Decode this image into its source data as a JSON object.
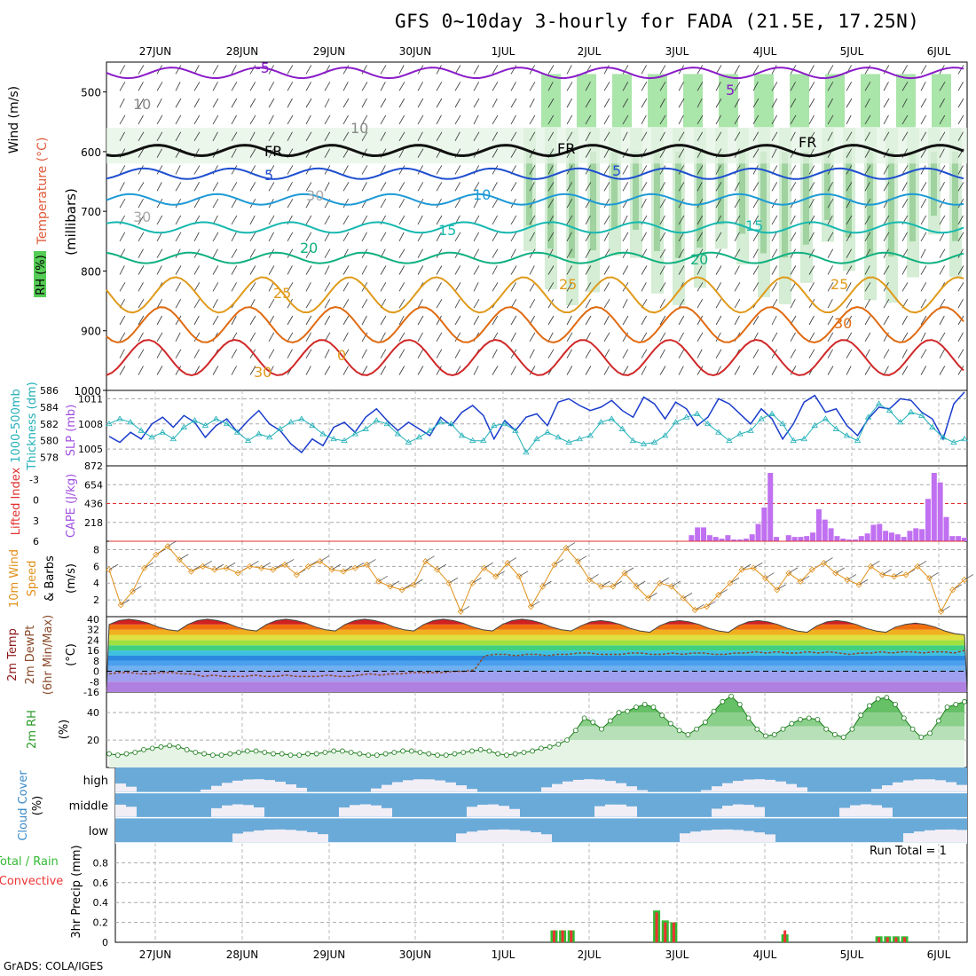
{
  "header": {
    "title": "GFS 0~10day 3-hourly for FADA (21.5E, 17.25N)",
    "credit": "GrADS: COLA/IGES",
    "run_total": "Run Total = 1"
  },
  "colors": {
    "rh_green": "#55cc55",
    "temp_purple": "#8a1cc8",
    "temp_blue": "#1f4fd0",
    "temp_cyan": "#1e9ad6",
    "temp_teal": "#16b8b0",
    "temp_green": "#10b080",
    "temp_orange": "#e09a1a",
    "temp_darkorange": "#e06a10",
    "temp_red": "#d02828",
    "thickness_blue": "#1a3ccc",
    "slp_cyan": "#22b0b8",
    "cape_purple": "#c070f0",
    "lifted_red": "#e03030",
    "wind_orange": "#e0901a",
    "cloud_blue": "#6aaad8",
    "precip_green": "#33bb33",
    "precip_red": "#ee3333"
  },
  "time_axis": {
    "date_labels": [
      "27JUN",
      "28JUN",
      "29JUN",
      "30JUN",
      "1JUL",
      "2JUL",
      "3JUL",
      "4JUL",
      "5JUL",
      "6JUL"
    ]
  },
  "panels": {
    "upper_air": {
      "ylabel_wind": "Wind (m/s)",
      "ylabel_temp": "Temperature (°C)",
      "ylabel_rh": "RH (%)",
      "ylabel_pressure": "(millibars)",
      "y_ticks": [
        "500",
        "600",
        "700",
        "800",
        "900",
        "1000"
      ],
      "contour_labels": [
        "-5",
        "5",
        "FR",
        "FR",
        "FR",
        "5",
        "5",
        "10",
        "15",
        "15",
        "20",
        "20",
        "25",
        "25",
        "25",
        "30",
        "30",
        "0",
        "10",
        "10",
        "30",
        "30"
      ]
    },
    "thickness_slp": {
      "ylabel_thickness": "Thickness (dm)",
      "ylabel_thickness_sub": "1000-500mb",
      "ylabel_slp": "SLP (mb)",
      "ticks_thickness": [
        "586",
        "584",
        "582",
        "580",
        "578"
      ],
      "ticks_slp": [
        "1011",
        "1008",
        "1005"
      ]
    },
    "cape_li": {
      "ylabel_li": "Lifted Index",
      "ylabel_cape": "CAPE (J/kg)",
      "ticks_li": [
        "-3",
        "0",
        "3",
        "6"
      ],
      "ticks_cape": [
        "872",
        "654",
        "436",
        "218"
      ]
    },
    "wind10m": {
      "ylabel_1": "10m Wind",
      "ylabel_2": "Speed",
      "ylabel_3": "& Barbs",
      "unit": "(m/s)",
      "ticks": [
        "8",
        "6",
        "4",
        "2"
      ]
    },
    "temp2m": {
      "ylabel_1": "2m Temp",
      "ylabel_2": "2m DewPt",
      "ylabel_3": "(6hr Min/Max)",
      "unit": "(°C)",
      "ticks": [
        "40",
        "32",
        "24",
        "16",
        "8",
        "0",
        "-8",
        "-16"
      ]
    },
    "rh2m": {
      "ylabel": "2m RH",
      "unit": "(%)",
      "ticks": [
        "40",
        "20"
      ]
    },
    "cloud": {
      "ylabel": "Cloud Cover",
      "unit": "(%)",
      "levels": [
        "high",
        "middle",
        "low"
      ]
    },
    "precip": {
      "ylabel_1": "Total / Rain",
      "ylabel_2": "Convective",
      "ylabel_3": "3hr Precip (mm)",
      "ticks": [
        "0.8",
        "0.6",
        "0.4",
        "0.2",
        "0"
      ]
    }
  },
  "chart_data": [
    {
      "type": "line",
      "name": "thickness_1000_500mb",
      "ylabel": "Thickness (dm)",
      "ylim": [
        577,
        586
      ],
      "values": [
        580.5,
        579.8,
        581.0,
        580.2,
        582.0,
        582.8,
        581.6,
        583.0,
        582.2,
        580.4,
        581.8,
        582.6,
        581.0,
        582.4,
        583.6,
        582.0,
        581.2,
        579.6,
        578.6,
        580.2,
        579.4,
        581.6,
        582.2,
        581.0,
        582.8,
        583.8,
        582.4,
        581.2,
        582.2,
        581.4,
        580.6,
        582.8,
        581.8,
        583.4,
        584.2,
        583.0,
        580.2,
        582.4,
        581.2,
        582.8,
        583.2,
        581.8,
        584.6,
        585.0,
        584.2,
        583.6,
        584.0,
        584.8,
        583.6,
        582.8,
        585.2,
        584.4,
        582.6,
        584.6,
        583.8,
        581.8,
        582.8,
        585.0,
        584.4,
        583.2,
        582.0,
        583.8,
        582.6,
        580.2,
        582.0,
        584.6,
        585.4,
        583.4,
        583.8,
        581.8,
        580.6,
        582.6,
        584.0,
        583.8,
        585.0,
        584.8,
        583.4,
        582.6,
        580.2,
        584.4,
        585.8
      ]
    },
    {
      "type": "line",
      "name": "slp",
      "ylabel": "SLP (mb)",
      "ylim": [
        1003,
        1012
      ],
      "values": [
        1008.0,
        1008.6,
        1008.2,
        1007.2,
        1006.4,
        1007.0,
        1006.2,
        1007.6,
        1008.4,
        1007.8,
        1008.6,
        1008.0,
        1007.0,
        1006.0,
        1006.8,
        1006.4,
        1007.4,
        1008.2,
        1008.6,
        1007.8,
        1006.8,
        1006.2,
        1006.0,
        1006.8,
        1007.4,
        1008.4,
        1008.0,
        1006.8,
        1005.8,
        1006.4,
        1007.2,
        1008.2,
        1008.0,
        1006.6,
        1006.0,
        1006.0,
        1007.8,
        1008.0,
        1007.2,
        1004.6,
        1006.2,
        1007.0,
        1006.4,
        1005.8,
        1006.2,
        1006.6,
        1008.2,
        1008.6,
        1007.4,
        1006.0,
        1005.6,
        1005.8,
        1006.6,
        1008.2,
        1008.8,
        1009.2,
        1008.0,
        1007.0,
        1006.0,
        1006.8,
        1007.2,
        1008.6,
        1009.2,
        1008.0,
        1006.0,
        1006.2,
        1007.8,
        1008.6,
        1007.4,
        1006.6,
        1006.0,
        1008.8,
        1010.4,
        1009.6,
        1008.2,
        1009.4,
        1009.0,
        1007.6,
        1006.4,
        1005.8,
        1006.2
      ]
    },
    {
      "type": "bar",
      "name": "cape",
      "ylabel": "CAPE (J/kg)",
      "ylim": [
        0,
        872
      ],
      "values": [
        0,
        0,
        0,
        0,
        0,
        0,
        0,
        0,
        0,
        0,
        0,
        0,
        0,
        0,
        0,
        0,
        0,
        0,
        0,
        0,
        0,
        0,
        0,
        0,
        0,
        0,
        0,
        0,
        0,
        0,
        0,
        0,
        0,
        0,
        0,
        0,
        0,
        0,
        0,
        0,
        0,
        0,
        0,
        0,
        0,
        0,
        0,
        0,
        0,
        0,
        0,
        0,
        0,
        0,
        0,
        0,
        0,
        0,
        0,
        0,
        0,
        0,
        0,
        0,
        0,
        0,
        0,
        0,
        0,
        0,
        0,
        0,
        0,
        0,
        0,
        0,
        0,
        0,
        0,
        0,
        0,
        0,
        0,
        0,
        0,
        0,
        0,
        0,
        0,
        0,
        0,
        0,
        0,
        0,
        0,
        0,
        70,
        160,
        160,
        70,
        50,
        30,
        70,
        20,
        20,
        30,
        80,
        200,
        390,
        790,
        50,
        0,
        70,
        50,
        50,
        60,
        100,
        370,
        250,
        150,
        60,
        30,
        20,
        20,
        60,
        90,
        190,
        200,
        120,
        100,
        80,
        50,
        120,
        150,
        140,
        490,
        790,
        680,
        280,
        60,
        60,
        40
      ]
    },
    {
      "type": "line",
      "name": "lifted_index",
      "ylabel": "Lifted Index",
      "ylim": [
        6,
        -5
      ],
      "values": [
        6,
        6,
        6,
        6,
        6,
        6,
        6,
        6,
        6,
        6,
        6,
        6,
        6,
        6,
        6,
        6,
        6,
        6,
        6,
        6,
        6,
        6,
        6,
        6,
        6,
        6,
        6,
        6,
        6,
        6,
        6,
        6,
        6,
        6,
        6,
        6,
        6,
        6,
        6,
        6,
        6,
        6,
        6,
        6,
        6,
        6,
        6,
        6,
        6,
        6,
        6,
        6,
        6,
        6,
        6,
        6,
        6,
        6,
        6,
        6,
        6,
        6,
        6,
        6,
        6,
        6,
        6,
        6,
        6,
        6,
        6,
        6,
        6,
        6,
        6,
        6,
        6,
        6,
        6,
        6,
        6,
        6,
        6,
        6,
        6,
        6,
        6,
        6,
        6,
        6,
        6,
        6,
        6,
        6,
        6,
        6,
        6,
        6,
        6,
        6,
        6,
        6,
        6,
        6,
        6,
        6,
        6,
        6,
        6,
        6,
        6,
        6,
        6,
        6,
        6,
        6,
        6,
        6,
        6,
        6,
        6,
        6,
        6,
        6,
        6,
        6,
        6,
        6,
        6,
        6,
        6,
        6,
        6,
        6,
        6,
        6,
        6,
        6,
        6,
        6,
        6,
        6,
        6,
        6,
        6,
        6
      ]
    },
    {
      "type": "line",
      "name": "wind_speed_10m",
      "ylabel": "Speed (m/s)",
      "ylim": [
        0,
        9
      ],
      "values": [
        5.6,
        1.4,
        3.0,
        5.8,
        7.4,
        8.4,
        6.8,
        5.4,
        6.0,
        5.6,
        5.8,
        5.2,
        6.0,
        5.8,
        5.6,
        6.2,
        5.0,
        6.0,
        6.6,
        5.6,
        5.4,
        5.8,
        6.2,
        4.2,
        3.6,
        3.2,
        3.8,
        6.6,
        5.6,
        4.0,
        0.6,
        4.0,
        5.8,
        4.8,
        6.4,
        4.8,
        1.2,
        3.6,
        6.2,
        8.2,
        6.6,
        4.4,
        3.6,
        3.6,
        5.2,
        3.6,
        2.2,
        4.0,
        3.6,
        2.2,
        0.8,
        1.2,
        2.6,
        4.0,
        5.6,
        5.8,
        4.6,
        3.2,
        5.2,
        4.2,
        5.6,
        6.4,
        5.2,
        4.4,
        3.8,
        6.0,
        5.0,
        4.8,
        5.0,
        6.0,
        4.6,
        0.6,
        3.2,
        4.4
      ]
    },
    {
      "type": "area",
      "name": "temp_2m",
      "ylabel": "2m Temp (°C)",
      "ylim": [
        -16,
        42
      ],
      "values": [
        36,
        39,
        40,
        39,
        37,
        34,
        32,
        31,
        36,
        39,
        40,
        39,
        37,
        34,
        32,
        31,
        36,
        39,
        40,
        39,
        37,
        34,
        32,
        31,
        36,
        39,
        40,
        39,
        37,
        34,
        32,
        31,
        36,
        39,
        40,
        39,
        37,
        34,
        32,
        31,
        36,
        39,
        40,
        39,
        37,
        34,
        32,
        31,
        35,
        38,
        39,
        38,
        36,
        33,
        31,
        30,
        35,
        38,
        39,
        38,
        36,
        33,
        31,
        30,
        35,
        38,
        39,
        38,
        36,
        33,
        31,
        30,
        35,
        38,
        39,
        38,
        36,
        33,
        31,
        30,
        34,
        36,
        37,
        36,
        34,
        31,
        29,
        28
      ]
    },
    {
      "type": "line",
      "name": "dewpoint_2m",
      "ylabel": "2m DewPt (°C)",
      "ylim": [
        -16,
        42
      ],
      "values": [
        -2,
        -1,
        -1,
        -2,
        -2,
        -1,
        -1,
        -2,
        -2,
        -4,
        -3,
        -4,
        -4,
        -4,
        -3,
        -4,
        -4,
        -3,
        -4,
        -4,
        -4,
        -3,
        -4,
        -4,
        -3,
        -2,
        -3,
        -2,
        -2,
        -1,
        -1,
        -1,
        -1,
        0,
        0,
        1,
        12,
        13,
        13,
        12,
        13,
        13,
        12,
        13,
        13,
        14,
        14,
        13,
        13,
        13,
        14,
        14,
        13,
        13,
        14,
        13,
        14,
        14,
        13,
        13,
        14,
        14,
        15,
        14,
        15,
        14,
        14,
        15,
        14,
        15,
        14,
        13,
        14,
        14,
        15,
        14,
        15,
        15,
        14,
        15,
        15,
        14,
        16
      ]
    },
    {
      "type": "area",
      "name": "rh_2m",
      "ylabel": "2m RH (%)",
      "ylim": [
        0,
        55
      ],
      "values": [
        10,
        9,
        10,
        11,
        13,
        14,
        15,
        16,
        15,
        13,
        11,
        10,
        9,
        9,
        10,
        11,
        12,
        12,
        11,
        10,
        10,
        9,
        9,
        10,
        10,
        11,
        12,
        12,
        11,
        10,
        9,
        9,
        10,
        11,
        12,
        12,
        11,
        10,
        9,
        9,
        10,
        11,
        12,
        13,
        12,
        10,
        9,
        10,
        11,
        12,
        14,
        15,
        17,
        20,
        27,
        36,
        33,
        28,
        34,
        40,
        41,
        44,
        46,
        44,
        38,
        32,
        27,
        24,
        28,
        33,
        41,
        48,
        52,
        46,
        36,
        28,
        23,
        24,
        28,
        32,
        35,
        36,
        35,
        28,
        24,
        22,
        28,
        38,
        45,
        50,
        51,
        46,
        36,
        28,
        22,
        25,
        34,
        44,
        46,
        48
      ]
    },
    {
      "type": "bar",
      "name": "precip_3hr_total",
      "ylabel": "3hr Precip (mm)",
      "ylim": [
        0,
        1.0
      ],
      "values": [
        0,
        0,
        0,
        0,
        0,
        0,
        0,
        0,
        0,
        0,
        0,
        0,
        0,
        0,
        0,
        0,
        0,
        0,
        0,
        0,
        0,
        0,
        0,
        0,
        0,
        0,
        0,
        0,
        0,
        0,
        0,
        0,
        0,
        0,
        0,
        0,
        0,
        0,
        0,
        0,
        0,
        0,
        0,
        0,
        0,
        0,
        0,
        0,
        0,
        0,
        0,
        0.12,
        0.12,
        0.12,
        0,
        0,
        0,
        0,
        0,
        0,
        0,
        0,
        0,
        0.32,
        0.22,
        0.2,
        0,
        0,
        0,
        0,
        0,
        0,
        0,
        0,
        0,
        0,
        0,
        0,
        0.08,
        0,
        0,
        0,
        0,
        0,
        0,
        0,
        0,
        0,
        0,
        0.06,
        0.06,
        0.06,
        0.06,
        0,
        0,
        0,
        0,
        0,
        0,
        0
      ]
    },
    {
      "type": "bar",
      "name": "precip_3hr_convective",
      "ylabel": "3hr Precip (mm)",
      "ylim": [
        0,
        1.0
      ],
      "values": [
        0,
        0,
        0,
        0,
        0,
        0,
        0,
        0,
        0,
        0,
        0,
        0,
        0,
        0,
        0,
        0,
        0,
        0,
        0,
        0,
        0,
        0,
        0,
        0,
        0,
        0,
        0,
        0,
        0,
        0,
        0,
        0,
        0,
        0,
        0,
        0,
        0,
        0,
        0,
        0,
        0,
        0,
        0,
        0,
        0,
        0,
        0,
        0,
        0,
        0,
        0,
        0.12,
        0.12,
        0.12,
        0,
        0,
        0,
        0,
        0,
        0,
        0,
        0,
        0,
        0.3,
        0.2,
        0.2,
        0,
        0,
        0,
        0,
        0,
        0,
        0,
        0,
        0,
        0,
        0,
        0,
        0.12,
        0,
        0,
        0,
        0,
        0,
        0,
        0,
        0,
        0,
        0,
        0.05,
        0.05,
        0.05,
        0.05,
        0,
        0,
        0,
        0,
        0,
        0,
        0
      ]
    }
  ]
}
